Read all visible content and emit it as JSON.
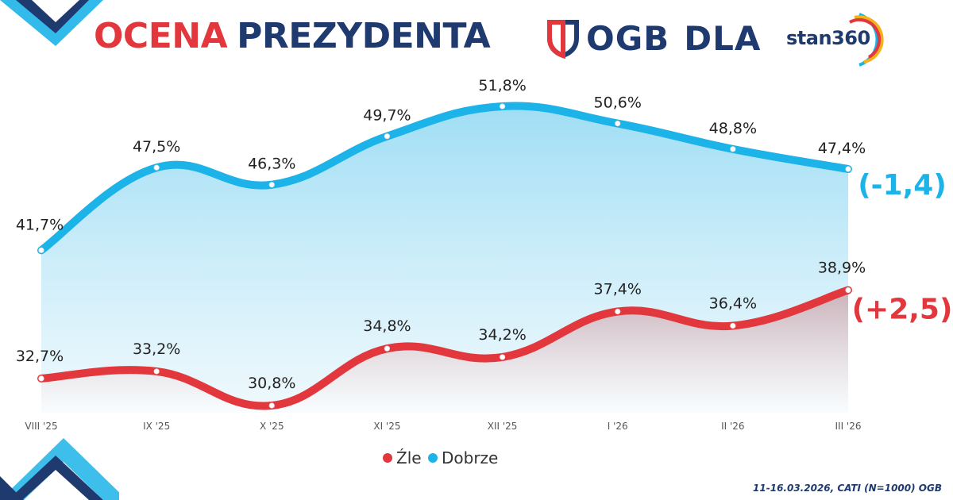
{
  "header": {
    "title_part1": "OCENA",
    "title_part2": "PREZYDENTA",
    "brand": "OGB",
    "title_part3": "DLA",
    "partner": "stan360"
  },
  "footer": {
    "source": "11-16.03.2026, CATI (N=1000) OGB"
  },
  "colors": {
    "dobrze": "#1cb3e8",
    "zle": "#e2383d",
    "navy": "#1f3a6e"
  },
  "chart_data": {
    "type": "line",
    "title": "OCENA PREZYDENTA",
    "categories": [
      "VIII '25",
      "IX '25",
      "X '25",
      "XI '25",
      "XII '25",
      "I '26",
      "II '26",
      "III '26"
    ],
    "series": [
      {
        "name": "Dobrze",
        "values": [
          41.7,
          47.5,
          46.3,
          49.7,
          51.8,
          50.6,
          48.8,
          47.4
        ],
        "labels": [
          "41,7%",
          "47,5%",
          "46,3%",
          "49,7%",
          "51,8%",
          "50,6%",
          "48,8%",
          "47,4%"
        ],
        "change": "(-1,4)"
      },
      {
        "name": "Źle",
        "values": [
          32.7,
          33.2,
          30.8,
          34.8,
          34.2,
          37.4,
          36.4,
          38.9
        ],
        "labels": [
          "32,7%",
          "33,2%",
          "30,8%",
          "34,8%",
          "34,2%",
          "37,4%",
          "36,4%",
          "38,9%"
        ],
        "change": "(+2,5)"
      }
    ],
    "legend": [
      "Źle",
      "Dobrze"
    ],
    "legend_position": "bottom-center",
    "ylim": [
      28,
      54
    ]
  }
}
